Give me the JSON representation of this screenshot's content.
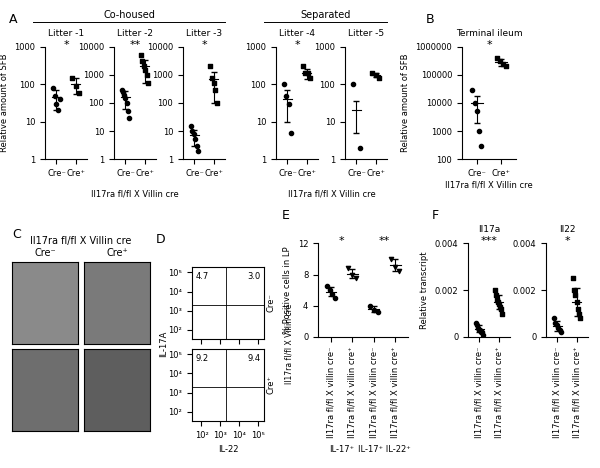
{
  "chart_data": [
    {
      "type": "scatter",
      "panel": "A",
      "group": "Co-housed",
      "group_xlabel": "Il17ra fl/fl X Villin cre",
      "title": "Litter -1",
      "ylabel": "Relative amount of SFB",
      "log": "y",
      "ylim": [
        1,
        1000
      ],
      "yticks": [
        1,
        10,
        100,
        1000
      ],
      "significance": "*",
      "groups": [
        {
          "label": "Cre⁻",
          "marker": "circle",
          "values": [
            80,
            50,
            30,
            20,
            40
          ],
          "mean": 45,
          "error": 25
        },
        {
          "label": "Cre⁺",
          "marker": "square",
          "values": [
            150,
            90,
            60
          ],
          "mean": 100,
          "error": 45
        }
      ]
    },
    {
      "type": "scatter",
      "panel": "A",
      "group": "Co-housed",
      "group_xlabel": "Il17ra fl/fl X Villin cre",
      "title": "Litter -2",
      "log": "y",
      "ylim": [
        1,
        10000
      ],
      "yticks": [
        1,
        10,
        100,
        1000,
        10000
      ],
      "significance": "**",
      "groups": [
        {
          "label": "Cre⁻",
          "marker": "circle",
          "values": [
            300,
            250,
            200,
            150,
            100,
            50,
            30
          ],
          "mean": 160,
          "error": 100
        },
        {
          "label": "Cre⁺",
          "marker": "square",
          "values": [
            5000,
            3000,
            2000,
            1500,
            1000,
            500
          ],
          "mean": 2000,
          "error": 1500
        }
      ]
    },
    {
      "type": "scatter",
      "panel": "A",
      "group": "Co-housed",
      "group_xlabel": "Il17ra fl/fl X Villin cre",
      "title": "Litter -3",
      "log": "y",
      "ylim": [
        1,
        10000
      ],
      "yticks": [
        1,
        10,
        100,
        1000,
        10000
      ],
      "significance": "*",
      "groups": [
        {
          "label": "Cre⁻",
          "marker": "circle",
          "values": [
            15,
            10,
            8,
            5,
            3,
            2
          ],
          "mean": 7,
          "error": 4
        },
        {
          "label": "Cre⁺",
          "marker": "square",
          "values": [
            2000,
            800,
            500,
            300,
            100
          ],
          "mean": 700,
          "error": 600
        }
      ]
    },
    {
      "type": "scatter",
      "panel": "A",
      "group": "Separated",
      "group_xlabel": "Il17ra fl/fl X Villin cre",
      "title": "Litter -4",
      "log": "y",
      "ylim": [
        1,
        1000
      ],
      "yticks": [
        1,
        10,
        100,
        1000
      ],
      "significance": "*",
      "groups": [
        {
          "label": "Cre⁻",
          "marker": "circle",
          "values": [
            100,
            50,
            30,
            5
          ],
          "mean": 40,
          "error": 30
        },
        {
          "label": "Cre⁺",
          "marker": "square",
          "values": [
            300,
            200,
            200,
            150
          ],
          "mean": 200,
          "error": 60
        }
      ]
    },
    {
      "type": "scatter",
      "panel": "A",
      "group": "Separated",
      "group_xlabel": "Il17ra fl/fl X Villin cre",
      "title": "Litter -5",
      "log": "y",
      "ylim": [
        1,
        1000
      ],
      "yticks": [
        1,
        10,
        100,
        1000
      ],
      "groups": [
        {
          "label": "Cre⁻",
          "marker": "circle",
          "values": [
            100,
            2
          ],
          "mean": 20,
          "error": 15
        },
        {
          "label": "Cre⁺",
          "marker": "square",
          "values": [
            200,
            180,
            150
          ],
          "mean": 175,
          "error": 20
        }
      ]
    },
    {
      "type": "scatter",
      "panel": "B",
      "title": "Terminal ileum",
      "xlabel": "Il17ra fl/fl X Villin cre",
      "ylabel": "Relative amount of SFB",
      "log": "y",
      "ylim": [
        100,
        1000000
      ],
      "yticks": [
        100,
        1000,
        10000,
        100000,
        1000000
      ],
      "significance": "*",
      "groups": [
        {
          "label": "Cre⁻",
          "marker": "circle",
          "values": [
            30000,
            10000,
            5000,
            1000,
            300
          ],
          "mean": 10000,
          "error": 8000
        },
        {
          "label": "Cre⁺",
          "marker": "square",
          "values": [
            400000,
            300000,
            250000,
            200000
          ],
          "mean": 280000,
          "error": 80000
        }
      ]
    },
    {
      "type": "image",
      "panel": "C",
      "title": "Il17ra fl/fl X Villin cre",
      "columns": [
        "Cre⁻",
        "Cre⁺"
      ]
    },
    {
      "type": "flow",
      "panel": "D",
      "xlabel": "IL-22",
      "ylabel": "IL-17A",
      "genotype": "Il17ra fl/fl X Villin cre",
      "xlim": [
        1.5,
        5.3
      ],
      "ylim": [
        1.5,
        5.3
      ],
      "gate": [
        3.3,
        3.3
      ],
      "xticks": [
        {
          "value": 2,
          "label": "10²"
        },
        {
          "value": 3,
          "label": "10³"
        },
        {
          "value": 4,
          "label": "10⁴"
        },
        {
          "value": 5,
          "label": "10⁵"
        }
      ],
      "yticks": [
        {
          "value": 2,
          "label": "10²"
        },
        {
          "value": 3,
          "label": "10³"
        },
        {
          "value": 4,
          "label": "10⁴"
        },
        {
          "value": 5,
          "label": "10⁵"
        }
      ],
      "plots": [
        {
          "label": "Cre⁻",
          "quadrants": [
            4.7,
            3.0
          ]
        },
        {
          "label": "Cre⁺",
          "quadrants": [
            9.2,
            9.4
          ]
        }
      ]
    },
    {
      "type": "scatter",
      "panel": "E",
      "ylabel": "% Positive cells in LP",
      "ylim": [
        0,
        12
      ],
      "yticks": [
        0,
        4,
        8,
        12
      ],
      "sets": [
        {
          "label": "IL-17⁺",
          "significance": "*"
        },
        {
          "label": "IL-17⁺ IL-22⁺",
          "significance": "**"
        }
      ],
      "groups": [
        {
          "label": "Il17ra fl/fl X villin cre⁻",
          "marker": "circle",
          "values": [
            6.5,
            6,
            5.5,
            5
          ],
          "mean": 5.8,
          "error": 0.6
        },
        {
          "label": "Il17ra fl/fl X villin cre⁺",
          "marker": "triangle_down",
          "values": [
            8.8,
            8,
            7.5
          ],
          "mean": 8.1,
          "error": 0.6
        },
        {
          "label": "Il17ra fl/fl X villin cre⁻",
          "marker": "circle",
          "values": [
            4,
            3.5,
            3.2
          ],
          "mean": 3.6,
          "error": 0.4
        },
        {
          "label": "Il17ra fl/fl X villin cre⁺",
          "marker": "triangle_down",
          "values": [
            10,
            9,
            8.5
          ],
          "mean": 9.2,
          "error": 0.8
        }
      ]
    },
    {
      "type": "scatter",
      "panel": "F",
      "title": "Il17a",
      "ylabel": "Relative transcript",
      "ylim": [
        0,
        0.004
      ],
      "yticks": [
        0,
        0.002,
        0.004
      ],
      "significance": "***",
      "groups": [
        {
          "label": "Il17ra fl/fl X villin cre⁻",
          "marker": "circle",
          "values": [
            0.0006,
            0.0005,
            0.0004,
            0.0003,
            0.0003,
            0.0002,
            0.0002,
            0.0001
          ],
          "mean": 0.00035,
          "error": 0.00015
        },
        {
          "label": "Il17ra fl/fl X villin cre⁺",
          "marker": "square",
          "values": [
            0.002,
            0.0018,
            0.0016,
            0.0015,
            0.0014,
            0.0013,
            0.0012,
            0.001
          ],
          "mean": 0.0015,
          "error": 0.0003
        }
      ]
    },
    {
      "type": "scatter",
      "panel": "F",
      "title": "Il22",
      "ylim": [
        0,
        0.004
      ],
      "yticks": [
        0,
        0.002,
        0.004
      ],
      "significance": "*",
      "groups": [
        {
          "label": "Il17ra fl/fl X villin cre⁻",
          "marker": "circle",
          "values": [
            0.0008,
            0.0006,
            0.0005,
            0.0004,
            0.0003,
            0.0002
          ],
          "mean": 0.00047,
          "error": 0.0002
        },
        {
          "label": "Il17ra fl/fl X villin cre⁺",
          "marker": "square",
          "values": [
            0.0025,
            0.002,
            0.0018,
            0.0015,
            0.0012,
            0.001,
            0.0008
          ],
          "mean": 0.0015,
          "error": 0.0006
        }
      ]
    }
  ]
}
